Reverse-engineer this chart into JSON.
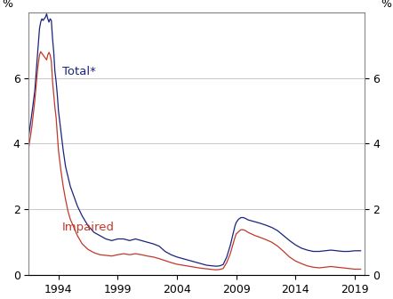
{
  "ylabel_left": "%",
  "ylabel_right": "%",
  "ylim": [
    0,
    8.0
  ],
  "yticks": [
    0,
    2,
    4,
    6
  ],
  "xlim_start": 1991.5,
  "xlim_end": 2019.8,
  "xticks": [
    1994,
    1999,
    2004,
    2009,
    2014,
    2019
  ],
  "total_color": "#1a237e",
  "impaired_color": "#c0392b",
  "total_label": "Total*",
  "impaired_label": "Impaired",
  "grid_color": "#c8c8c8",
  "total_data": [
    [
      1991.5,
      4.25
    ],
    [
      1991.75,
      4.9
    ],
    [
      1992.0,
      5.6
    ],
    [
      1992.25,
      6.8
    ],
    [
      1992.4,
      7.5
    ],
    [
      1992.5,
      7.7
    ],
    [
      1992.6,
      7.8
    ],
    [
      1992.7,
      7.75
    ],
    [
      1992.9,
      7.85
    ],
    [
      1993.0,
      7.95
    ],
    [
      1993.1,
      7.8
    ],
    [
      1993.2,
      7.7
    ],
    [
      1993.3,
      7.8
    ],
    [
      1993.4,
      7.75
    ],
    [
      1993.5,
      7.2
    ],
    [
      1993.6,
      6.8
    ],
    [
      1993.7,
      6.2
    ],
    [
      1993.8,
      5.9
    ],
    [
      1993.9,
      5.5
    ],
    [
      1994.0,
      5.0
    ],
    [
      1994.2,
      4.4
    ],
    [
      1994.4,
      3.8
    ],
    [
      1994.6,
      3.3
    ],
    [
      1994.8,
      3.0
    ],
    [
      1995.0,
      2.7
    ],
    [
      1995.3,
      2.4
    ],
    [
      1995.6,
      2.1
    ],
    [
      1996.0,
      1.8
    ],
    [
      1996.5,
      1.5
    ],
    [
      1997.0,
      1.3
    ],
    [
      1997.5,
      1.2
    ],
    [
      1998.0,
      1.1
    ],
    [
      1998.5,
      1.05
    ],
    [
      1999.0,
      1.1
    ],
    [
      1999.5,
      1.1
    ],
    [
      2000.0,
      1.05
    ],
    [
      2000.5,
      1.1
    ],
    [
      2001.0,
      1.05
    ],
    [
      2001.5,
      1.0
    ],
    [
      2002.0,
      0.95
    ],
    [
      2002.5,
      0.88
    ],
    [
      2003.0,
      0.72
    ],
    [
      2003.5,
      0.62
    ],
    [
      2004.0,
      0.55
    ],
    [
      2004.5,
      0.5
    ],
    [
      2005.0,
      0.45
    ],
    [
      2005.5,
      0.4
    ],
    [
      2006.0,
      0.35
    ],
    [
      2006.5,
      0.3
    ],
    [
      2007.0,
      0.28
    ],
    [
      2007.3,
      0.27
    ],
    [
      2007.6,
      0.28
    ],
    [
      2007.9,
      0.32
    ],
    [
      2008.2,
      0.55
    ],
    [
      2008.5,
      0.9
    ],
    [
      2008.7,
      1.2
    ],
    [
      2008.9,
      1.5
    ],
    [
      2009.0,
      1.6
    ],
    [
      2009.2,
      1.7
    ],
    [
      2009.4,
      1.75
    ],
    [
      2009.6,
      1.75
    ],
    [
      2009.8,
      1.72
    ],
    [
      2010.0,
      1.68
    ],
    [
      2010.3,
      1.65
    ],
    [
      2010.6,
      1.62
    ],
    [
      2011.0,
      1.58
    ],
    [
      2011.5,
      1.52
    ],
    [
      2012.0,
      1.45
    ],
    [
      2012.5,
      1.35
    ],
    [
      2013.0,
      1.2
    ],
    [
      2013.5,
      1.05
    ],
    [
      2014.0,
      0.92
    ],
    [
      2014.5,
      0.82
    ],
    [
      2015.0,
      0.76
    ],
    [
      2015.5,
      0.72
    ],
    [
      2016.0,
      0.72
    ],
    [
      2016.5,
      0.74
    ],
    [
      2017.0,
      0.76
    ],
    [
      2017.5,
      0.74
    ],
    [
      2018.0,
      0.72
    ],
    [
      2018.5,
      0.72
    ],
    [
      2019.0,
      0.74
    ],
    [
      2019.5,
      0.74
    ]
  ],
  "impaired_data": [
    [
      1991.5,
      3.9
    ],
    [
      1991.75,
      4.5
    ],
    [
      1992.0,
      5.3
    ],
    [
      1992.25,
      6.3
    ],
    [
      1992.4,
      6.7
    ],
    [
      1992.5,
      6.8
    ],
    [
      1992.6,
      6.75
    ],
    [
      1992.7,
      6.7
    ],
    [
      1992.9,
      6.6
    ],
    [
      1993.0,
      6.55
    ],
    [
      1993.1,
      6.7
    ],
    [
      1993.2,
      6.78
    ],
    [
      1993.3,
      6.7
    ],
    [
      1993.4,
      6.5
    ],
    [
      1993.5,
      5.9
    ],
    [
      1993.6,
      5.5
    ],
    [
      1993.7,
      5.1
    ],
    [
      1993.8,
      4.8
    ],
    [
      1993.9,
      4.3
    ],
    [
      1994.0,
      3.8
    ],
    [
      1994.2,
      3.2
    ],
    [
      1994.4,
      2.7
    ],
    [
      1994.6,
      2.3
    ],
    [
      1994.8,
      1.95
    ],
    [
      1995.0,
      1.7
    ],
    [
      1995.3,
      1.45
    ],
    [
      1995.6,
      1.2
    ],
    [
      1996.0,
      0.95
    ],
    [
      1996.5,
      0.78
    ],
    [
      1997.0,
      0.68
    ],
    [
      1997.5,
      0.62
    ],
    [
      1998.0,
      0.6
    ],
    [
      1998.5,
      0.58
    ],
    [
      1999.0,
      0.62
    ],
    [
      1999.5,
      0.65
    ],
    [
      2000.0,
      0.62
    ],
    [
      2000.5,
      0.65
    ],
    [
      2001.0,
      0.62
    ],
    [
      2001.5,
      0.58
    ],
    [
      2002.0,
      0.55
    ],
    [
      2002.5,
      0.5
    ],
    [
      2003.0,
      0.44
    ],
    [
      2003.5,
      0.38
    ],
    [
      2004.0,
      0.33
    ],
    [
      2004.5,
      0.3
    ],
    [
      2005.0,
      0.27
    ],
    [
      2005.5,
      0.24
    ],
    [
      2006.0,
      0.21
    ],
    [
      2006.5,
      0.19
    ],
    [
      2007.0,
      0.17
    ],
    [
      2007.3,
      0.16
    ],
    [
      2007.6,
      0.17
    ],
    [
      2007.9,
      0.2
    ],
    [
      2008.2,
      0.38
    ],
    [
      2008.5,
      0.65
    ],
    [
      2008.7,
      0.9
    ],
    [
      2008.9,
      1.15
    ],
    [
      2009.0,
      1.25
    ],
    [
      2009.2,
      1.32
    ],
    [
      2009.4,
      1.38
    ],
    [
      2009.6,
      1.38
    ],
    [
      2009.8,
      1.35
    ],
    [
      2010.0,
      1.3
    ],
    [
      2010.3,
      1.25
    ],
    [
      2010.6,
      1.2
    ],
    [
      2011.0,
      1.15
    ],
    [
      2011.5,
      1.08
    ],
    [
      2012.0,
      1.0
    ],
    [
      2012.5,
      0.88
    ],
    [
      2013.0,
      0.72
    ],
    [
      2013.5,
      0.55
    ],
    [
      2014.0,
      0.43
    ],
    [
      2014.5,
      0.35
    ],
    [
      2015.0,
      0.28
    ],
    [
      2015.5,
      0.24
    ],
    [
      2016.0,
      0.22
    ],
    [
      2016.5,
      0.24
    ],
    [
      2017.0,
      0.26
    ],
    [
      2017.5,
      0.24
    ],
    [
      2018.0,
      0.22
    ],
    [
      2018.5,
      0.2
    ],
    [
      2019.0,
      0.18
    ],
    [
      2019.5,
      0.18
    ]
  ]
}
